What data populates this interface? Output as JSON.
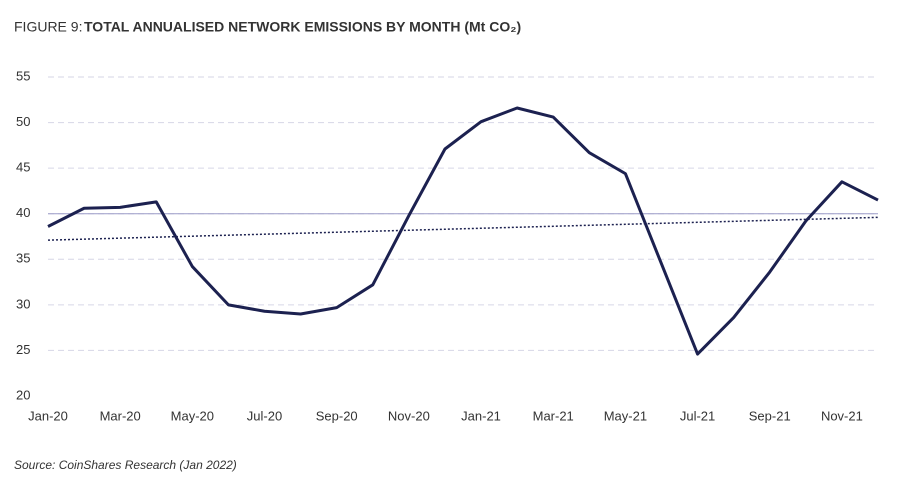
{
  "chart_data": {
    "type": "line",
    "figure_label": "FIGURE 9:",
    "title": "TOTAL ANNUALISED NETWORK EMISSIONS BY MONTH (Mt CO₂)",
    "source": "Source: CoinShares Research (Jan 2022)",
    "categories": [
      "Jan-20",
      null,
      "Mar-20",
      null,
      "May-20",
      null,
      "Jul-20",
      null,
      "Sep-20",
      null,
      "Nov-20",
      null,
      "Jan-21",
      null,
      "Mar-21",
      null,
      "May-21",
      null,
      "Jul-21",
      null,
      "Sep-21",
      null,
      "Nov-21",
      null
    ],
    "series": [
      {
        "color": "#1c2150",
        "values": [
          38.6,
          40.6,
          40.7,
          41.3,
          34.2,
          30.0,
          29.3,
          29.0,
          29.7,
          32.2,
          39.8,
          47.1,
          50.1,
          51.6,
          50.6,
          46.7,
          44.4,
          34.5,
          24.6,
          28.6,
          33.6,
          39.2,
          43.5,
          41.5
        ]
      }
    ],
    "trend": [
      37.1,
      39.6
    ],
    "reference_line": 40,
    "ylim": [
      20,
      55
    ],
    "yticks": [
      20,
      25,
      30,
      35,
      40,
      45,
      50,
      55
    ],
    "grid": true
  }
}
